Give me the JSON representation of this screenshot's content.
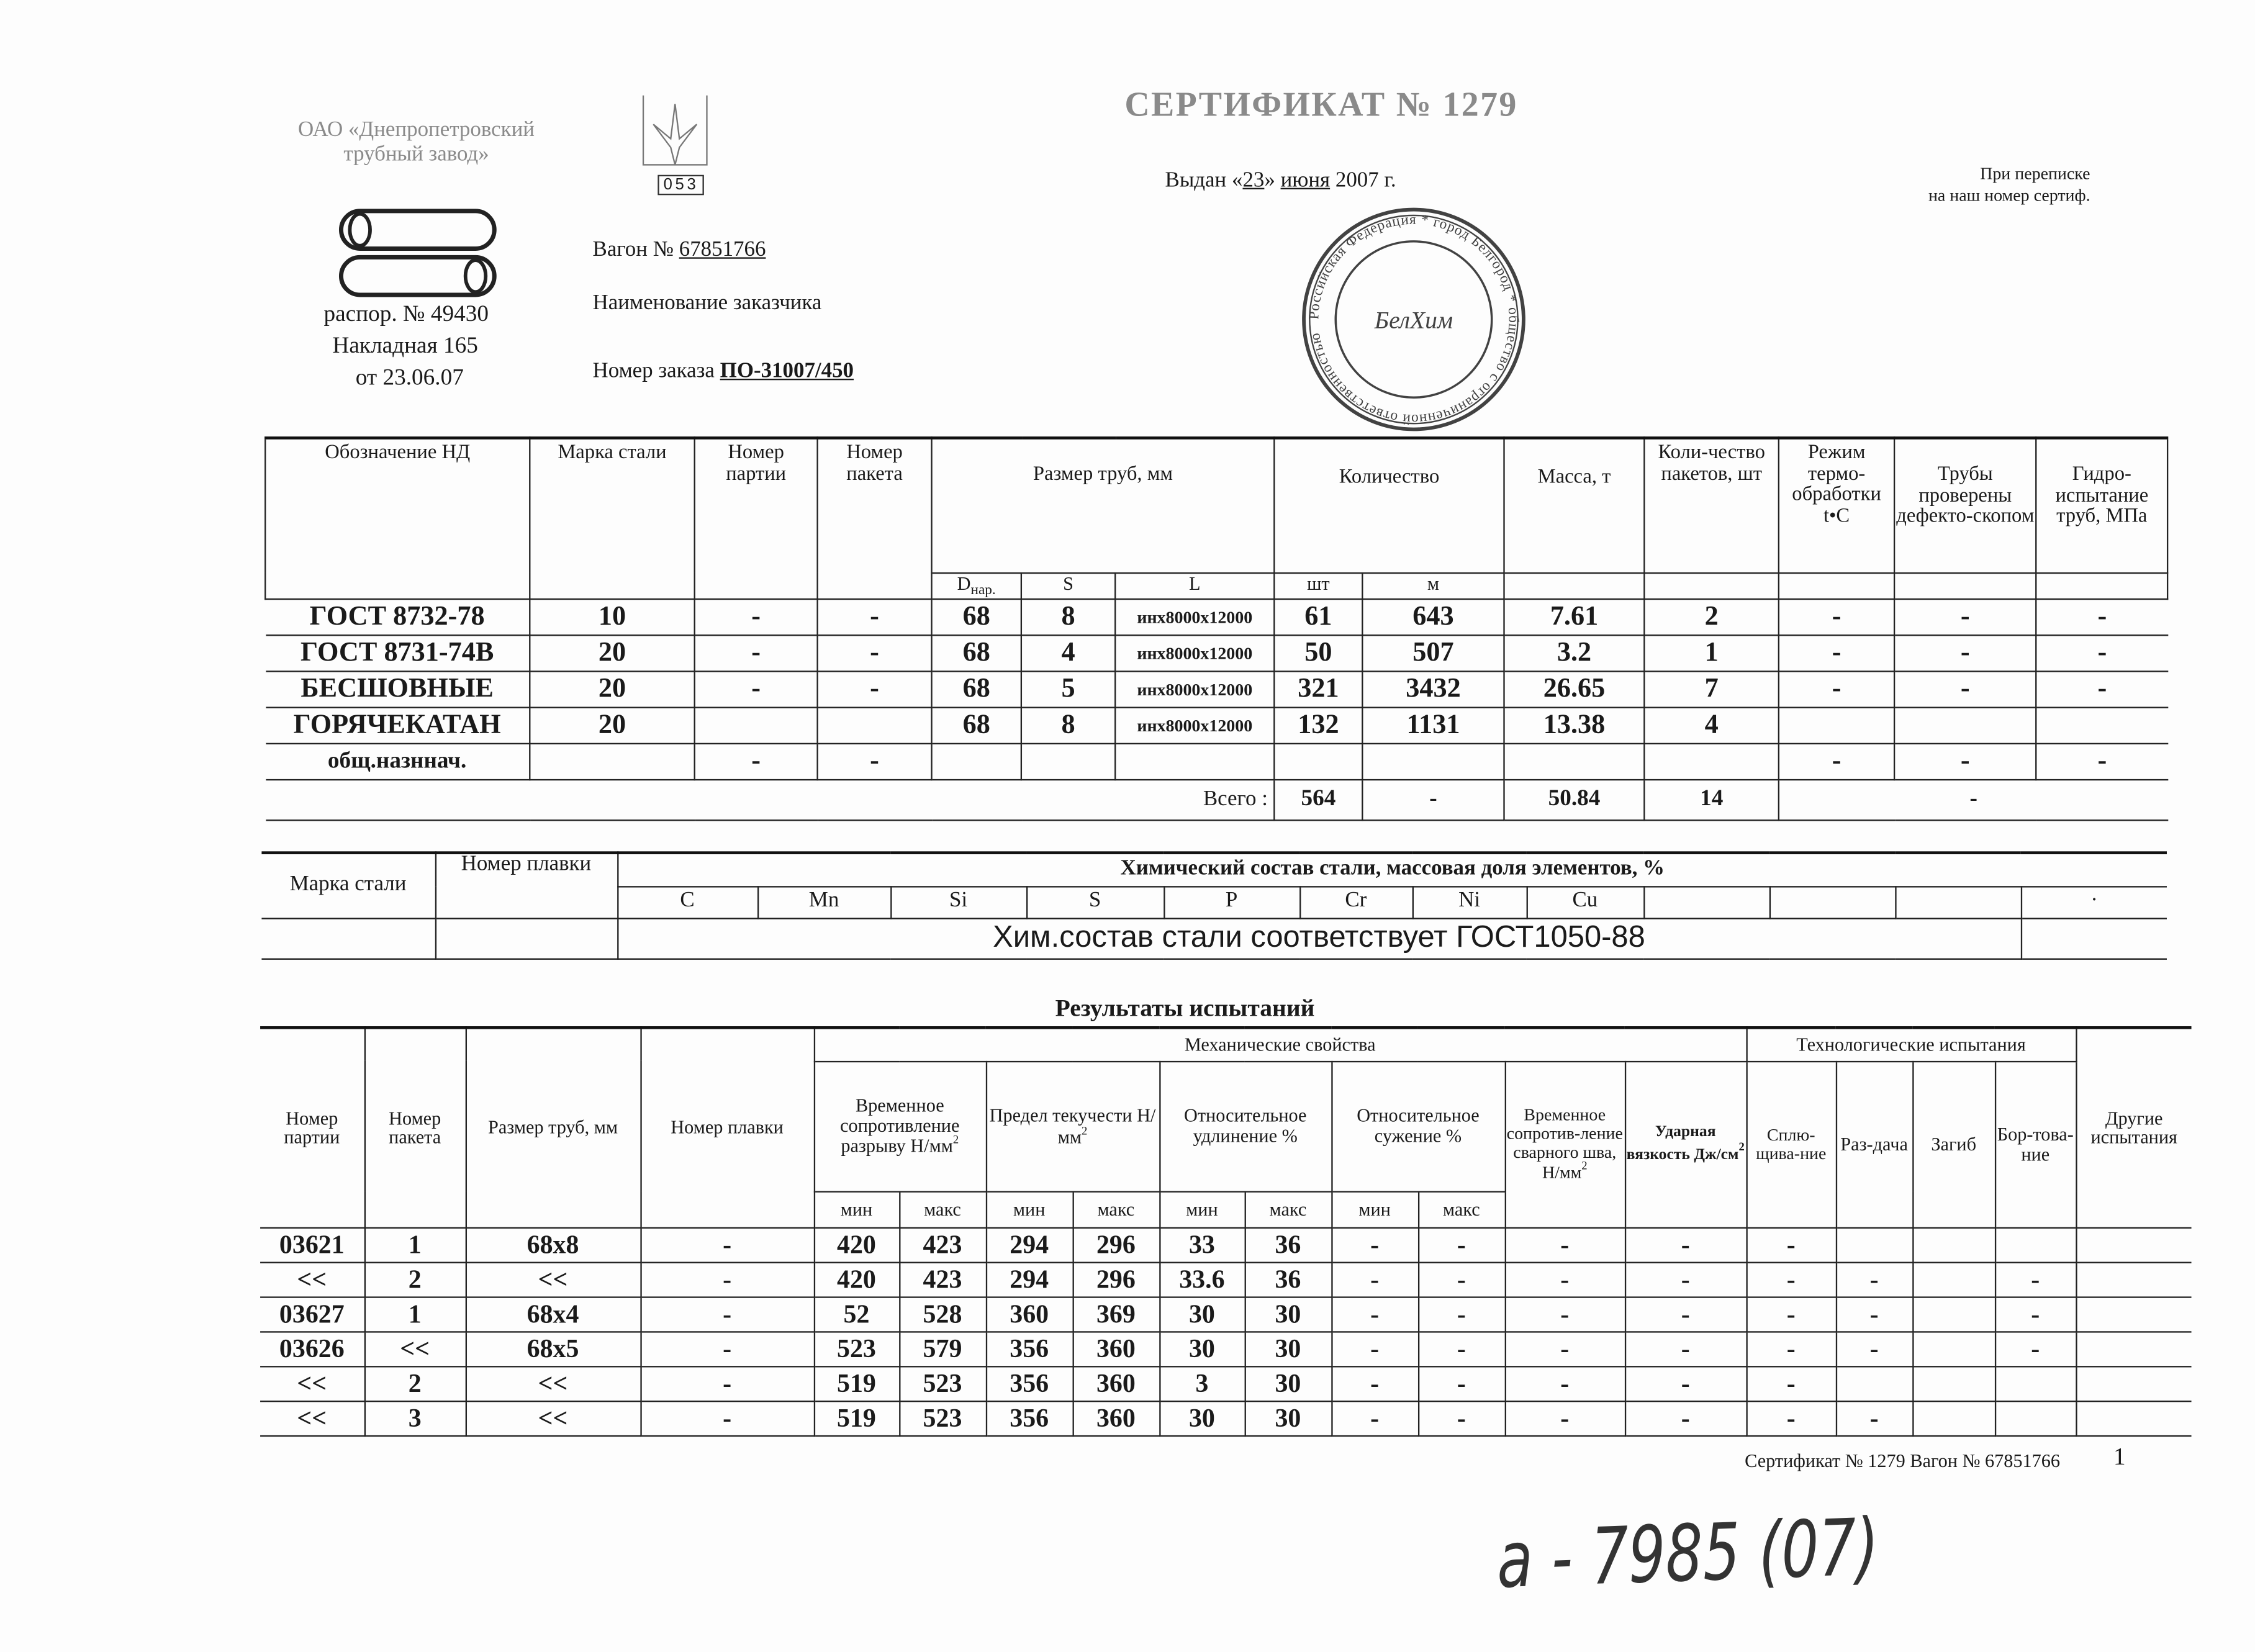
{
  "issuer": {
    "name_line1": "ОАО «Днепропетровский",
    "name_line2": "трубный завод»",
    "logo_code": "053"
  },
  "title": "СЕРТИФИКАТ № 1279",
  "issued": {
    "prefix": "Выдан «",
    "day": "23",
    "sep": "»",
    "month": "июня",
    "year": "2007",
    "suffix": "г."
  },
  "correspondence_note": {
    "line1": "При переписке",
    "line2": "на наш номер сертиф."
  },
  "left_info": {
    "raspor": "распор. № 49430",
    "nakladnaya": "Накладная  165",
    "date": "от 23.06.07"
  },
  "wagon": {
    "label": "Вагон №",
    "value": "67851766"
  },
  "customer": {
    "label": "Наименование заказчика"
  },
  "order": {
    "label": "Номер заказа",
    "value": "ПО-31007/450"
  },
  "shipment_table": {
    "headers": {
      "nd": "Обозначение НД",
      "steel": "Марка стали",
      "batch": "Номер партии",
      "package": "Номер пакета",
      "size": "Размер труб, мм",
      "quantity": "Количество",
      "mass": "Масса, т",
      "packages": "Коли-чество пакетов, шт",
      "heat_treatment": "Режим термо-обработки t•C",
      "defect": "Трубы проверены дефекто-скопом",
      "hydro": "Гидро-испытание труб, МПа",
      "d": "D",
      "d_sub": "нар.",
      "s": "S",
      "l": "L",
      "pcs": "шт",
      "m": "м"
    },
    "rows": [
      [
        "ГОСТ 8732-78",
        "10",
        "-",
        "-",
        "68",
        "8",
        "инх8000х12000",
        "61",
        "643",
        "7.61",
        "2",
        "-",
        "-",
        "-"
      ],
      [
        "ГОСТ 8731-74В",
        "20",
        "-",
        "-",
        "68",
        "4",
        "инх8000х12000",
        "50",
        "507",
        "3.2",
        "1",
        "-",
        "-",
        "-"
      ],
      [
        "БЕСШОВНЫЕ",
        "20",
        "-",
        "-",
        "68",
        "5",
        "инх8000х12000",
        "321",
        "3432",
        "26.65",
        "7",
        "-",
        "-",
        "-"
      ],
      [
        "ГОРЯЧЕКАТАН",
        "20",
        "",
        "",
        "68",
        "8",
        "инх8000х12000",
        "132",
        "1131",
        "13.38",
        "4",
        "",
        "",
        ""
      ],
      [
        "общ.назннач.",
        "",
        "-",
        "-",
        "",
        "",
        "",
        "",
        "",
        "",
        "",
        "-",
        "-",
        "-"
      ]
    ],
    "total": {
      "label": "Всего :",
      "pcs": "564",
      "m": "-",
      "mass": "50.84",
      "packages": "14",
      "rest": "-"
    }
  },
  "chem_table": {
    "steel": "Марка стали",
    "heat": "Номер плавки",
    "title": "Химический состав стали, массовая доля элементов, %",
    "elements": [
      "C",
      "Mn",
      "Si",
      "S",
      "P",
      "Cr",
      "Ni",
      "Cu",
      "",
      "",
      "",
      "·"
    ],
    "note": "Хим.состав стали соответствует ГОСТ1050-88"
  },
  "results": {
    "title": "Результаты испытаний",
    "headers": {
      "batch": "Номер партии",
      "package": "Номер пакета",
      "size": "Размер труб, мм",
      "heat": "Номер плавки",
      "mech": "Механические свойства",
      "tech": "Технологические испытания",
      "tensile": "Временное сопротивление разрыву Н/мм",
      "yield": "Предел текучести Н/мм",
      "elong": "Относительное удлинение %",
      "contraction": "Относительное сужение %",
      "weld": "Временное сопротив-ление сварного шва, Н/мм",
      "impact": "Ударная вязкость Дж/см",
      "flatten": "Сплю-щива-ние",
      "expand": "Раз-дача",
      "bend": "Загиб",
      "flange": "Бор-това-ние",
      "other": "Другие испытания",
      "min": "мин",
      "max": "макс",
      "sq": "2"
    },
    "rows": [
      [
        "03621",
        "1",
        "68х8",
        "-",
        "420",
        "423",
        "294",
        "296",
        "33",
        "36",
        "-",
        "-",
        "-",
        "-",
        "-",
        "",
        "",
        "",
        ""
      ],
      [
        "<<",
        "2",
        "<<",
        "-",
        "420",
        "423",
        "294",
        "296",
        "33.6",
        "36",
        "-",
        "-",
        "-",
        "-",
        "-",
        "-",
        "",
        "-",
        ""
      ],
      [
        "03627",
        "1",
        "68х4",
        "-",
        "52",
        "528",
        "360",
        "369",
        "30",
        "30",
        "-",
        "-",
        "-",
        "-",
        "-",
        "-",
        "",
        "-",
        ""
      ],
      [
        "03626",
        "<<",
        "68х5",
        "-",
        "523",
        "579",
        "356",
        "360",
        "30",
        "30",
        "-",
        "-",
        "-",
        "-",
        "-",
        "-",
        "",
        "-",
        ""
      ],
      [
        "<<",
        "2",
        "<<",
        "-",
        "519",
        "523",
        "356",
        "360",
        "3",
        "30",
        "-",
        "-",
        "-",
        "-",
        "-",
        "",
        "",
        "",
        ""
      ],
      [
        "<<",
        "3",
        "<<",
        "-",
        "519",
        "523",
        "356",
        "360",
        "30",
        "30",
        "-",
        "-",
        "-",
        "-",
        "-",
        "-",
        "",
        "",
        ""
      ]
    ]
  },
  "stamp": {
    "center": "БелХим",
    "ring_text": "Российская Федерация * город Белгород * общество с ограниченной ответственностью"
  },
  "footer": {
    "text": "Сертификат № 1279 Вагон № 67851766",
    "page": "1"
  },
  "handwritten_note": "а - 7985 (07)"
}
